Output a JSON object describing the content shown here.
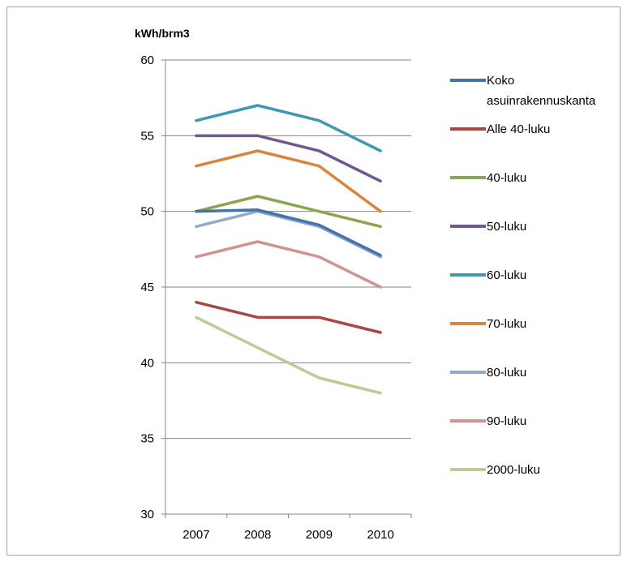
{
  "chart_data": {
    "type": "line",
    "title": "",
    "unit_label": "kWh/brm3",
    "xlabel": "",
    "ylabel": "",
    "categories": [
      "2007",
      "2008",
      "2009",
      "2010"
    ],
    "ylim": [
      30,
      60
    ],
    "yticks": [
      30,
      35,
      40,
      45,
      50,
      55,
      60
    ],
    "grid": true,
    "legend_position": "right",
    "series": [
      {
        "name": "Koko asuinrakennuskanta",
        "label_lines": [
          "Koko",
          "asuinrakennuskanta"
        ],
        "color": "#4572a7",
        "values": [
          50,
          50.1,
          49.1,
          47.1
        ]
      },
      {
        "name": "Alle 40-luku",
        "label_lines": [
          "Alle 40-luku"
        ],
        "color": "#aa4643",
        "values": [
          44,
          43,
          43,
          42
        ]
      },
      {
        "name": "40-luku",
        "label_lines": [
          "40-luku"
        ],
        "color": "#89a54e",
        "values": [
          50,
          51,
          50,
          49
        ]
      },
      {
        "name": "50-luku",
        "label_lines": [
          "50-luku"
        ],
        "color": "#71588f",
        "values": [
          55,
          55,
          54,
          52
        ]
      },
      {
        "name": "60-luku",
        "label_lines": [
          "60-luku"
        ],
        "color": "#4198af",
        "values": [
          56,
          57,
          56,
          54
        ]
      },
      {
        "name": "70-luku",
        "label_lines": [
          "70-luku"
        ],
        "color": "#db843d",
        "values": [
          53,
          54,
          53,
          50
        ]
      },
      {
        "name": "80-luku",
        "label_lines": [
          "80-luku"
        ],
        "color": "#93a9cf",
        "values": [
          49,
          50,
          49,
          47
        ]
      },
      {
        "name": "90-luku",
        "label_lines": [
          "90-luku"
        ],
        "color": "#d19392",
        "values": [
          47,
          48,
          47,
          45
        ]
      },
      {
        "name": "2000-luku",
        "label_lines": [
          "2000-luku"
        ],
        "color": "#b9cd96",
        "values": [
          43,
          41,
          39,
          38
        ]
      }
    ]
  }
}
